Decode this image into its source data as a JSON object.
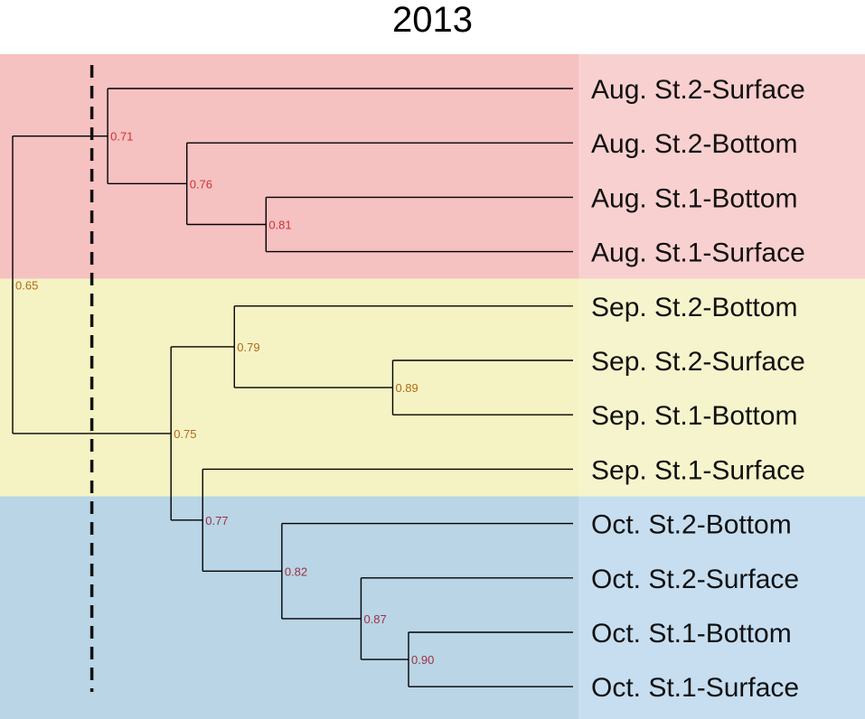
{
  "title": "2013",
  "colors": {
    "aug_band": "#f6c1c1",
    "aug_label_band": "#f8d0cf",
    "sep_band": "#f5f3c4",
    "sep_label_band": "#f6f4cc",
    "oct_band": "#b9d5e6",
    "oct_label_band": "#c6def0",
    "tree_line": "#000000",
    "cutoff_line": "#111111",
    "value_aug": "#cc3333",
    "value_sep": "#b06a18",
    "value_oct": "#a03040"
  },
  "groups": [
    {
      "name": "Aug",
      "color_key": "aug"
    },
    {
      "name": "Sep",
      "color_key": "sep"
    },
    {
      "name": "Oct",
      "color_key": "oct"
    }
  ],
  "leaves": [
    "Aug. St.2-Surface",
    "Aug. St.2-Bottom",
    "Aug. St.1-Bottom",
    "Aug. St.1-Surface",
    "Sep. St.2-Bottom",
    "Sep. St.2-Surface",
    "Sep. St.1-Bottom",
    "Sep. St.1-Surface",
    "Oct. St.2-Bottom",
    "Oct. St.2-Surface",
    "Oct. St.1-Bottom",
    "Oct. St.1-Surface"
  ],
  "nodes": [
    {
      "id": "n081",
      "value": "0.81",
      "sim": 0.81,
      "children": [
        "Aug. St.1-Bottom",
        "Aug. St.1-Surface"
      ],
      "group": "aug"
    },
    {
      "id": "n076",
      "value": "0.76",
      "sim": 0.76,
      "children": [
        "Aug. St.2-Bottom",
        "n081"
      ],
      "group": "aug"
    },
    {
      "id": "n071",
      "value": "0.71",
      "sim": 0.71,
      "children": [
        "Aug. St.2-Surface",
        "n076"
      ],
      "group": "aug"
    },
    {
      "id": "n089",
      "value": "0.89",
      "sim": 0.89,
      "children": [
        "Sep. St.2-Surface",
        "Sep. St.1-Bottom"
      ],
      "group": "sep"
    },
    {
      "id": "n079",
      "value": "0.79",
      "sim": 0.79,
      "children": [
        "Sep. St.2-Bottom",
        "n089"
      ],
      "group": "sep"
    },
    {
      "id": "n090",
      "value": "0.90",
      "sim": 0.9,
      "children": [
        "Oct. St.1-Bottom",
        "Oct. St.1-Surface"
      ],
      "group": "oct"
    },
    {
      "id": "n087",
      "value": "0.87",
      "sim": 0.87,
      "children": [
        "Oct. St.2-Surface",
        "n090"
      ],
      "group": "oct"
    },
    {
      "id": "n082",
      "value": "0.82",
      "sim": 0.82,
      "children": [
        "Oct. St.2-Bottom",
        "n087"
      ],
      "group": "oct"
    },
    {
      "id": "n077",
      "value": "0.77",
      "sim": 0.77,
      "children": [
        "Sep. St.1-Surface",
        "n082"
      ],
      "group": "oct"
    },
    {
      "id": "n075",
      "value": "0.75",
      "sim": 0.75,
      "children": [
        "n079",
        "n077"
      ],
      "group": "sep"
    },
    {
      "id": "n065",
      "value": "0.65",
      "sim": 0.65,
      "children": [
        "n071",
        "n075"
      ],
      "group": "sep"
    }
  ],
  "cutoff": {
    "sim": 0.7,
    "style": "dashed"
  }
}
